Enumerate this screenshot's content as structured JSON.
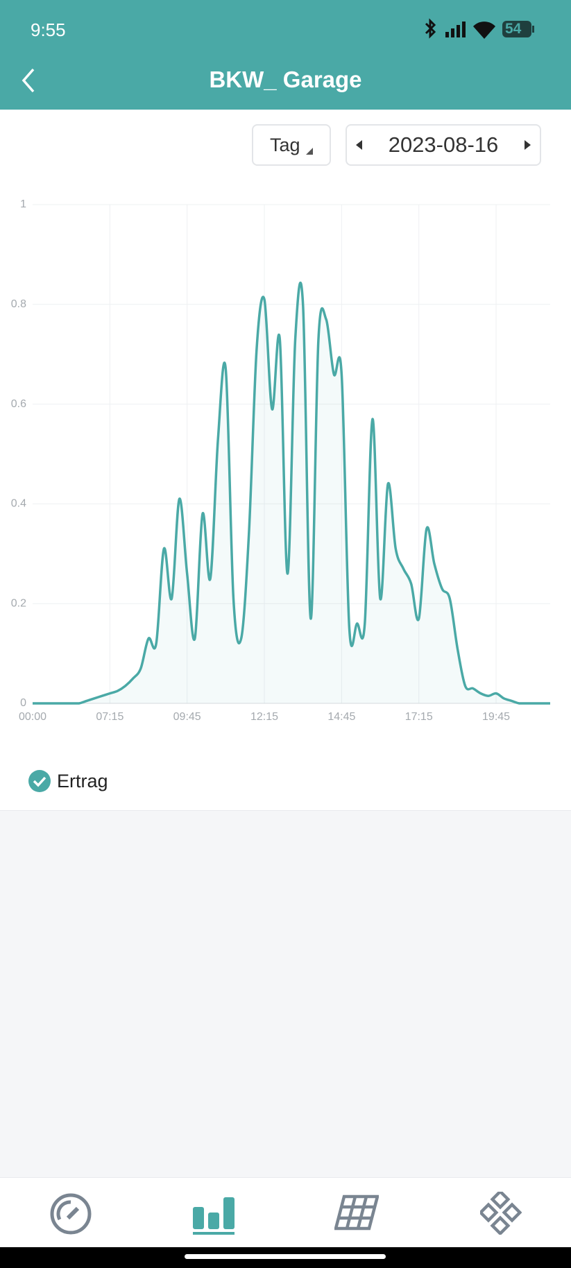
{
  "status_bar": {
    "time": "9:55",
    "battery": "54"
  },
  "header": {
    "title": "BKW_ Garage"
  },
  "controls": {
    "period": "Tag",
    "date": "2023-08-16"
  },
  "chart_data": {
    "type": "line",
    "categories": [
      "00:00",
      null,
      null,
      null,
      null,
      null,
      null,
      null,
      null,
      null,
      "07:15",
      null,
      null,
      null,
      null,
      null,
      null,
      null,
      null,
      null,
      "09:45",
      null,
      null,
      null,
      null,
      null,
      null,
      null,
      null,
      null,
      "12:15",
      null,
      null,
      null,
      null,
      null,
      null,
      null,
      null,
      null,
      "14:45",
      null,
      null,
      null,
      null,
      null,
      null,
      null,
      null,
      null,
      "17:15",
      null,
      null,
      null,
      null,
      null,
      null,
      null,
      null,
      null,
      "19:45",
      null,
      null,
      null,
      null,
      null,
      null,
      null
    ],
    "series": [
      {
        "name": "Ertrag",
        "color": "#4aa9a6",
        "values": [
          0,
          0,
          0,
          0,
          0,
          0,
          0,
          0.005,
          0.01,
          0.015,
          0.02,
          0.025,
          0.035,
          0.05,
          0.07,
          0.13,
          0.12,
          0.31,
          0.21,
          0.41,
          0.26,
          0.13,
          0.38,
          0.25,
          0.53,
          0.67,
          0.21,
          0.13,
          0.34,
          0.71,
          0.81,
          0.59,
          0.73,
          0.26,
          0.73,
          0.8,
          0.17,
          0.73,
          0.77,
          0.66,
          0.66,
          0.15,
          0.16,
          0.16,
          0.57,
          0.21,
          0.44,
          0.31,
          0.27,
          0.24,
          0.17,
          0.35,
          0.28,
          0.23,
          0.21,
          0.11,
          0.035,
          0.03,
          0.02,
          0.015,
          0.02,
          0.01,
          0.005,
          0,
          0,
          0,
          0,
          0
        ]
      }
    ],
    "ylim": [
      0,
      1
    ],
    "yticks": [
      0,
      0.2,
      0.4,
      0.6,
      0.8,
      1
    ],
    "grid": true
  }
}
